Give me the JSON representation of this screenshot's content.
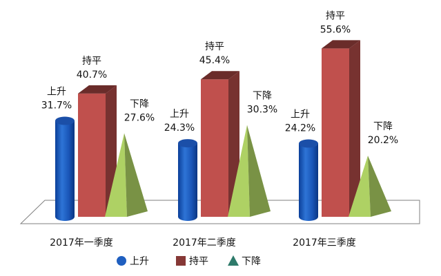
{
  "chart_data": {
    "type": "bar",
    "categories": [
      "2017年一季度",
      "2017年二季度",
      "2017年三季度"
    ],
    "series": [
      {
        "name": "上升",
        "values": [
          31.7,
          24.3,
          24.2
        ],
        "color": "#1f5fc0",
        "shape": "cylinder"
      },
      {
        "name": "持平",
        "values": [
          40.7,
          45.4,
          55.6
        ],
        "color": "#c0504d",
        "shape": "box"
      },
      {
        "name": "下降",
        "values": [
          27.6,
          30.3,
          20.2
        ],
        "color": "#9bbb59",
        "shape": "pyramid"
      }
    ],
    "value_suffix": "%",
    "title": "",
    "xlabel": "",
    "ylabel": "",
    "ylim": [
      0,
      60
    ],
    "grid": false,
    "legend": "bottom",
    "style": "3d"
  }
}
